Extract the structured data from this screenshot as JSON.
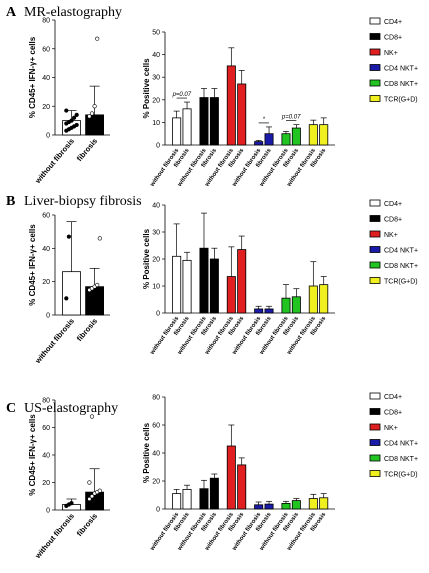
{
  "panels": [
    {
      "letter": "A",
      "title": "MR-elastography",
      "left": {
        "ylabel": "% CD45+ IFN-γ+ cells",
        "ylim": [
          0,
          80
        ],
        "yticks": [
          0,
          20,
          40,
          60,
          80
        ],
        "categories": [
          "without fibrosis",
          "fibrosis"
        ],
        "means": [
          10,
          14
        ],
        "sd": [
          7,
          20
        ],
        "points": [
          [
            3,
            4,
            5,
            6,
            7,
            8,
            9,
            10,
            12,
            14,
            17
          ],
          [
            13,
            15,
            20,
            67
          ]
        ]
      },
      "right": {
        "ylabel": "% Positive cells",
        "ylim": [
          0,
          50
        ],
        "yticks": [
          0,
          10,
          20,
          30,
          40,
          50
        ],
        "categories": [
          "without fibrosis",
          "fibrosis"
        ],
        "groups": [
          {
            "name": "CD4+",
            "color": "#ffffff",
            "values": [
              12,
              16
            ],
            "sd": [
              3,
              3
            ]
          },
          {
            "name": "CD8+",
            "color": "#000000",
            "values": [
              21,
              21
            ],
            "sd": [
              4,
              4
            ]
          },
          {
            "name": "NK+",
            "color": "#e02020",
            "values": [
              35,
              27
            ],
            "sd": [
              8,
              6
            ]
          },
          {
            "name": "CD4 NKT+",
            "color": "#1a1aa8",
            "values": [
              1.5,
              5
            ],
            "sd": [
              0.5,
              3
            ]
          },
          {
            "name": "CD8 NKT+",
            "color": "#22c422",
            "values": [
              5,
              7.5
            ],
            "sd": [
              1,
              1.5
            ]
          },
          {
            "name": "TCR(G+D)",
            "color": "#f0f020",
            "values": [
              9,
              9
            ],
            "sd": [
              2,
              3
            ]
          }
        ],
        "annotations": [
          {
            "group": 0,
            "text": "p=0.07"
          },
          {
            "group": 3,
            "text": "*"
          },
          {
            "group": 4,
            "text": "p=0.07"
          }
        ]
      }
    },
    {
      "letter": "B",
      "title": "Liver-biopsy fibrosis",
      "left": {
        "ylabel": "% CD45+ IFN-γ+ cells",
        "ylim": [
          0,
          60
        ],
        "yticks": [
          0,
          20,
          40,
          60
        ],
        "categories": [
          "without fibrosis",
          "fibrosis"
        ],
        "means": [
          26,
          17
        ],
        "sd": [
          30,
          11
        ],
        "points": [
          [
            10,
            47
          ],
          [
            15,
            16,
            17,
            18,
            46
          ]
        ]
      },
      "right": {
        "ylabel": "% Positive cells",
        "ylim": [
          0,
          40
        ],
        "yticks": [
          0,
          10,
          20,
          30,
          40
        ],
        "categories": [
          "without fibrosis",
          "fibrosis"
        ],
        "groups": [
          {
            "name": "CD4+",
            "color": "#ffffff",
            "values": [
              21,
              19.5
            ],
            "sd": [
              12,
              3
            ]
          },
          {
            "name": "CD8+",
            "color": "#000000",
            "values": [
              24,
              20
            ],
            "sd": [
              13,
              4
            ]
          },
          {
            "name": "NK+",
            "color": "#e02020",
            "values": [
              13.5,
              23.5
            ],
            "sd": [
              11,
              5
            ]
          },
          {
            "name": "CD4 NKT+",
            "color": "#1a1aa8",
            "values": [
              1.5,
              1.5
            ],
            "sd": [
              1,
              1
            ]
          },
          {
            "name": "CD8 NKT+",
            "color": "#22c422",
            "values": [
              5.5,
              6
            ],
            "sd": [
              5,
              3
            ]
          },
          {
            "name": "TCR(G+D)",
            "color": "#f0f020",
            "values": [
              10,
              10.5
            ],
            "sd": [
              9,
              3
            ]
          }
        ],
        "annotations": []
      }
    },
    {
      "letter": "C",
      "title": "US-elastography",
      "left": {
        "ylabel": "% CD45+ IFN-γ+ cells",
        "ylim": [
          0,
          80
        ],
        "yticks": [
          0,
          20,
          40,
          60,
          80
        ],
        "categories": [
          "without fibrosis",
          "fibrosis"
        ],
        "means": [
          4,
          13
        ],
        "sd": [
          4,
          17
        ],
        "points": [
          [
            3,
            4,
            5
          ],
          [
            8,
            10,
            12,
            13,
            14,
            20,
            68
          ]
        ]
      },
      "right": {
        "ylabel": "% Positive cells",
        "ylim": [
          0,
          80
        ],
        "yticks": [
          0,
          20,
          40,
          60,
          80
        ],
        "categories": [
          "without fibrosis",
          "fibrosis"
        ],
        "groups": [
          {
            "name": "CD4+",
            "color": "#ffffff",
            "values": [
              11,
              14
            ],
            "sd": [
              3,
              3
            ]
          },
          {
            "name": "CD8+",
            "color": "#000000",
            "values": [
              14.5,
              22
            ],
            "sd": [
              6,
              3
            ]
          },
          {
            "name": "NK+",
            "color": "#e02020",
            "values": [
              45,
              31.5
            ],
            "sd": [
              15,
              5
            ]
          },
          {
            "name": "CD4 NKT+",
            "color": "#1a1aa8",
            "values": [
              3,
              3.5
            ],
            "sd": [
              2,
              2
            ]
          },
          {
            "name": "CD8 NKT+",
            "color": "#22c422",
            "values": [
              4,
              6
            ],
            "sd": [
              1.5,
              1.5
            ]
          },
          {
            "name": "TCR(G+D)",
            "color": "#f0f020",
            "values": [
              7.5,
              8
            ],
            "sd": [
              3,
              3
            ]
          }
        ],
        "annotations": []
      }
    }
  ]
}
